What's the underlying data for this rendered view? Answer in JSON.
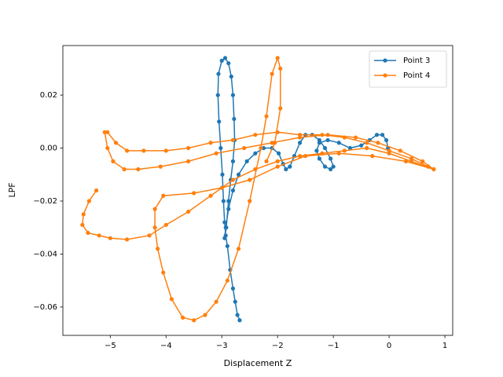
{
  "chart_data": {
    "type": "line",
    "x_label": "Displacement Z",
    "y_label": "LPF",
    "xlim": [
      -5.85,
      1.14
    ],
    "ylim": [
      -0.0707,
      0.0387
    ],
    "xticks": [
      {
        "value": -5,
        "label": "−5"
      },
      {
        "value": -4,
        "label": "−4"
      },
      {
        "value": -3,
        "label": "−3"
      },
      {
        "value": -2,
        "label": "−2"
      },
      {
        "value": -1,
        "label": "−1"
      },
      0,
      1
    ],
    "yticks": [
      {
        "value": -0.06,
        "label": "−0.06"
      },
      {
        "value": -0.04,
        "label": "−0.04"
      },
      {
        "value": -0.02,
        "label": "−0.02"
      },
      {
        "value": 0,
        "label": "0.00"
      },
      {
        "value": 0.02,
        "label": "0.02"
      }
    ],
    "legend": "upper right",
    "grid": false,
    "series": [
      {
        "name": "Point 3",
        "color": "#1f77b4",
        "x": [
          -2.68,
          -2.72,
          -2.76,
          -2.8,
          -2.85,
          -2.9,
          -2.93,
          -2.95,
          -2.97,
          -2.99,
          -3.02,
          -3.05,
          -3.07,
          -3.06,
          -3.0,
          -2.94,
          -2.88,
          -2.83,
          -2.8,
          -2.78,
          -2.77,
          -2.8,
          -2.84,
          -2.88,
          -2.92,
          -2.95,
          -2.93,
          -2.88,
          -2.8,
          -2.7,
          -2.55,
          -2.4,
          -2.25,
          -2.1,
          -1.98,
          -1.9,
          -1.85,
          -1.78,
          -1.7,
          -1.6,
          -1.5,
          -1.38,
          -1.25,
          -1.15,
          -1.05,
          -1.0,
          -1.05,
          -1.15,
          -1.25,
          -1.3,
          -1.25,
          -1.1,
          -0.9,
          -0.7,
          -0.5,
          -0.35,
          -0.22,
          -0.12,
          -0.05,
          -0.02
        ],
        "y": [
          -0.065,
          -0.063,
          -0.058,
          -0.053,
          -0.046,
          -0.037,
          -0.033,
          -0.028,
          -0.02,
          -0.01,
          0.0,
          0.01,
          0.02,
          0.028,
          0.033,
          0.034,
          0.032,
          0.027,
          0.02,
          0.011,
          0.003,
          -0.005,
          -0.012,
          -0.02,
          -0.03,
          -0.034,
          -0.03,
          -0.023,
          -0.016,
          -0.01,
          -0.005,
          -0.002,
          0.0,
          0.0,
          -0.002,
          -0.006,
          -0.008,
          -0.007,
          -0.003,
          0.002,
          0.005,
          0.005,
          0.003,
          0.0,
          -0.004,
          -0.007,
          -0.008,
          -0.007,
          -0.004,
          -0.001,
          0.002,
          0.003,
          0.002,
          0.0,
          0.001,
          0.003,
          0.005,
          0.005,
          0.003,
          0.0
        ]
      },
      {
        "name": "Point 4",
        "color": "#ff7f0e",
        "x": [
          -5.25,
          -5.38,
          -5.48,
          -5.5,
          -5.4,
          -5.2,
          -5.0,
          -4.7,
          -4.3,
          -4.0,
          -3.6,
          -3.2,
          -2.8,
          -2.4,
          -2.0,
          -1.6,
          -1.2,
          -0.8,
          -0.4,
          0.0,
          0.4,
          0.8,
          0.7,
          0.4,
          0.0,
          -0.4,
          -0.8,
          -1.2,
          -1.6,
          -2.0,
          -2.4,
          -2.8,
          -3.2,
          -3.6,
          -4.0,
          -4.4,
          -4.7,
          -4.9,
          -5.05,
          -5.1,
          -5.05,
          -4.95,
          -4.75,
          -4.5,
          -4.1,
          -3.6,
          -3.1,
          -2.6,
          -2.1,
          -1.6,
          -1.1,
          -0.6,
          -0.2,
          0.2,
          0.6,
          0.8,
          0.3,
          -0.3,
          -0.9,
          -1.5,
          -2.0,
          -2.5,
          -3.0,
          -3.5,
          -4.05,
          -4.2,
          -4.2,
          -4.15,
          -4.05,
          -3.9,
          -3.7,
          -3.5,
          -3.3,
          -3.1,
          -2.9,
          -2.7,
          -2.5,
          -2.3,
          -2.2,
          -2.1,
          -2.0,
          -1.95,
          -1.95,
          -2.05,
          -2.2
        ],
        "y": [
          -0.016,
          -0.02,
          -0.025,
          -0.029,
          -0.032,
          -0.033,
          -0.034,
          -0.0345,
          -0.033,
          -0.029,
          -0.024,
          -0.018,
          -0.012,
          -0.008,
          -0.005,
          -0.003,
          -0.002,
          -0.001,
          0.0,
          -0.002,
          -0.005,
          -0.008,
          -0.007,
          -0.004,
          -0.001,
          0.002,
          0.004,
          0.005,
          0.005,
          0.006,
          0.005,
          0.003,
          0.002,
          0.0,
          -0.001,
          -0.001,
          -0.001,
          0.002,
          0.006,
          0.006,
          0.0,
          -0.005,
          -0.008,
          -0.008,
          -0.007,
          -0.005,
          -0.002,
          0.0,
          0.002,
          0.004,
          0.005,
          0.004,
          0.002,
          -0.001,
          -0.005,
          -0.008,
          -0.005,
          -0.003,
          -0.002,
          -0.003,
          -0.007,
          -0.012,
          -0.015,
          -0.017,
          -0.018,
          -0.023,
          -0.03,
          -0.038,
          -0.047,
          -0.057,
          -0.064,
          -0.065,
          -0.063,
          -0.058,
          -0.05,
          -0.038,
          -0.02,
          0.0,
          0.012,
          0.028,
          0.034,
          0.03,
          0.015,
          0.002,
          -0.005
        ]
      }
    ]
  }
}
